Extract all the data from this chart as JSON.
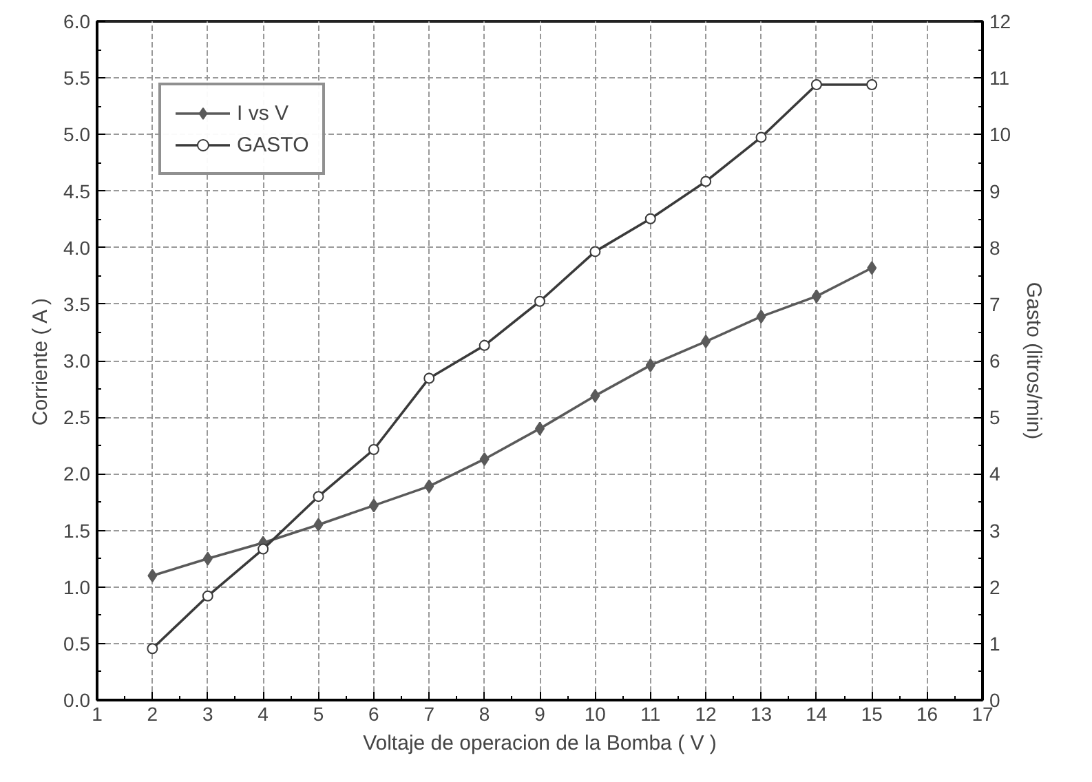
{
  "chart_data": {
    "type": "line",
    "xlabel": "Voltaje de operacion de la Bomba ( V )",
    "ylabel": "Corriente ( A )",
    "y2label": "Gasto (litros/min)",
    "x": [
      2,
      3,
      4,
      5,
      6,
      7,
      8,
      9,
      10,
      11,
      12,
      13,
      14,
      15
    ],
    "series": [
      {
        "name": "I vs V",
        "color": "#5a5a5a",
        "marker": "diamond",
        "values": [
          1.1,
          1.25,
          1.39,
          1.55,
          1.72,
          1.89,
          2.13,
          2.4,
          2.69,
          2.96,
          3.17,
          3.39,
          3.57,
          3.82
        ]
      },
      {
        "name": "GASTO",
        "color": "#3a3a3a",
        "marker": "circle",
        "axis": "y2",
        "values": [
          0.91,
          1.84,
          2.67,
          3.6,
          4.43,
          5.69,
          6.27,
          7.05,
          7.93,
          8.51,
          9.17,
          9.95,
          10.88,
          10.88
        ]
      }
    ],
    "xlim": [
      1,
      17
    ],
    "xticks": [
      1,
      2,
      3,
      4,
      5,
      6,
      7,
      8,
      9,
      10,
      11,
      12,
      13,
      14,
      15,
      16,
      17
    ],
    "ylim": [
      0,
      6
    ],
    "yticks": [
      {
        "value": 0,
        "label": "0.0"
      },
      {
        "value": 0.5,
        "label": "0.5"
      },
      {
        "value": 1,
        "label": "1.0"
      },
      {
        "value": 1.5,
        "label": "1.5"
      },
      {
        "value": 2,
        "label": "2.0"
      },
      {
        "value": 2.5,
        "label": "2.5"
      },
      {
        "value": 3,
        "label": "3.0"
      },
      {
        "value": 3.5,
        "label": "3.5"
      },
      {
        "value": 4,
        "label": "4.0"
      },
      {
        "value": 4.5,
        "label": "4.5"
      },
      {
        "value": 5,
        "label": "5.0"
      },
      {
        "value": 5.5,
        "label": "5.5"
      },
      {
        "value": 6,
        "label": "6.0"
      }
    ],
    "y2lim": [
      0,
      12
    ],
    "y2ticks": [
      0,
      1,
      2,
      3,
      4,
      5,
      6,
      7,
      8,
      9,
      10,
      11,
      12
    ],
    "grid": true,
    "legend": "top left",
    "line_style": "solid"
  }
}
